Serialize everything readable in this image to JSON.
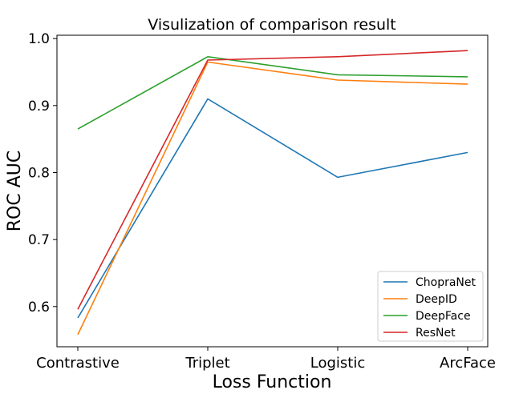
{
  "chart_data": {
    "type": "line",
    "title": "Visulization of comparison result",
    "xlabel": "Loss Function",
    "ylabel": "ROC AUC",
    "categories": [
      "Contrastive",
      "Triplet",
      "Logistic",
      "ArcFace"
    ],
    "ylim": [
      0.54,
      1.005
    ],
    "yticks": [
      "0.6",
      "0.7",
      "0.8",
      "0.9",
      "1.0"
    ],
    "legend_position": "bottom-right",
    "grid": false,
    "series": [
      {
        "name": "ChopraNet",
        "color": "#1f77b4",
        "values": [
          0.583,
          0.91,
          0.793,
          0.83
        ]
      },
      {
        "name": "DeepID",
        "color": "#ff7f0e",
        "values": [
          0.558,
          0.965,
          0.938,
          0.932
        ]
      },
      {
        "name": "DeepFace",
        "color": "#2ca02c",
        "values": [
          0.865,
          0.973,
          0.946,
          0.943
        ]
      },
      {
        "name": "ResNet",
        "color": "#d62728",
        "values": [
          0.596,
          0.968,
          0.973,
          0.982
        ]
      }
    ]
  }
}
